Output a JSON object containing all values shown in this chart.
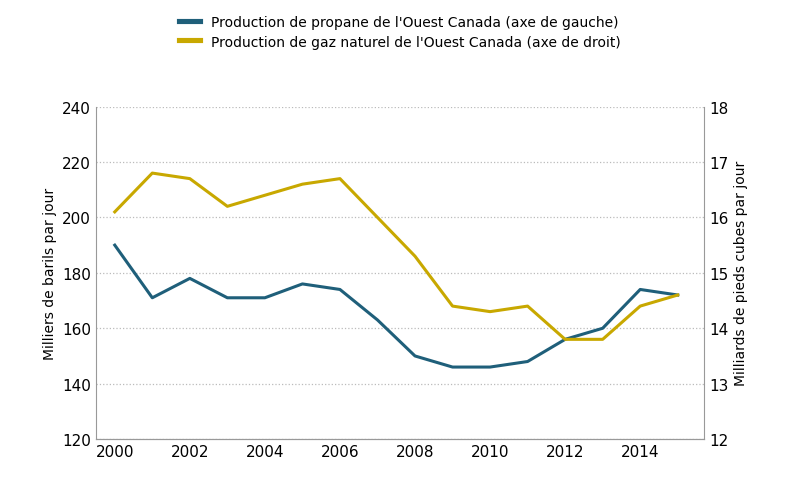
{
  "years": [
    2000,
    2001,
    2002,
    2003,
    2004,
    2005,
    2006,
    2007,
    2008,
    2009,
    2010,
    2011,
    2012,
    2013,
    2014,
    2015
  ],
  "propane": [
    190,
    171,
    178,
    171,
    171,
    176,
    174,
    163,
    150,
    146,
    146,
    148,
    156,
    160,
    174,
    172
  ],
  "gas": [
    16.1,
    16.8,
    16.7,
    16.2,
    16.4,
    16.6,
    16.7,
    16.0,
    15.3,
    14.4,
    14.3,
    14.4,
    13.8,
    13.8,
    14.4,
    14.6
  ],
  "propane_color": "#1f5f7a",
  "gas_color": "#c8a800",
  "ylim_left": [
    120,
    240
  ],
  "ylim_right": [
    12,
    18
  ],
  "yticks_left": [
    120,
    140,
    160,
    180,
    200,
    220,
    240
  ],
  "yticks_right": [
    12,
    13,
    14,
    15,
    16,
    17,
    18
  ],
  "ylabel_left": "Milliers de barils par jour",
  "ylabel_right": "Milliards de pieds cubes par jour",
  "legend_propane": "Production de propane de l'Ouest Canada (axe de gauche)",
  "legend_gas": "Production de gaz naturel de l'Ouest Canada (axe de droit)",
  "background_color": "#ffffff",
  "grid_color": "#bbbbbb",
  "line_width": 2.2,
  "xticks": [
    2000,
    2002,
    2004,
    2006,
    2008,
    2010,
    2012,
    2014
  ],
  "xlim": [
    1999.5,
    2015.7
  ],
  "tick_fontsize": 11,
  "label_fontsize": 10,
  "legend_fontsize": 10
}
